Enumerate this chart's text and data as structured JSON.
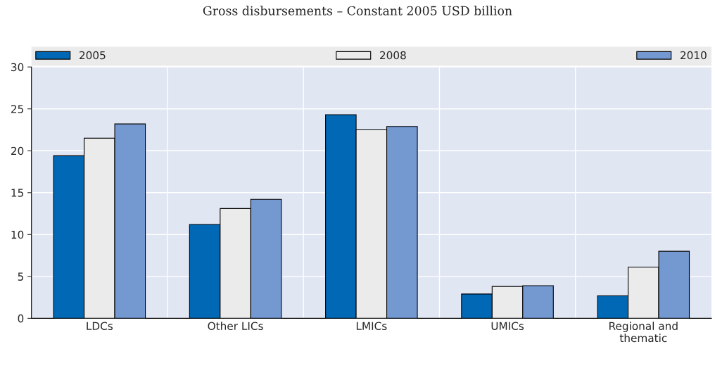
{
  "chart_data": {
    "type": "bar",
    "title": "Gross disbursements – Constant 2005 USD billion",
    "categories": [
      "LDCs",
      "Other LICs",
      "LMICs",
      "UMICs",
      "Regional and\nthematic"
    ],
    "series": [
      {
        "name": "2005",
        "color": "#0068b4",
        "values": [
          19.4,
          11.2,
          24.3,
          2.9,
          2.7
        ]
      },
      {
        "name": "2008",
        "color": "#ebebeb",
        "values": [
          21.5,
          13.1,
          22.5,
          3.8,
          6.1
        ]
      },
      {
        "name": "2010",
        "color": "#7499d1",
        "values": [
          23.2,
          14.2,
          22.9,
          3.9,
          8.0
        ]
      }
    ],
    "ylim": [
      0,
      30
    ],
    "yticks": [
      0,
      5,
      10,
      15,
      20,
      25,
      30
    ],
    "grid": true,
    "legend": "top"
  }
}
